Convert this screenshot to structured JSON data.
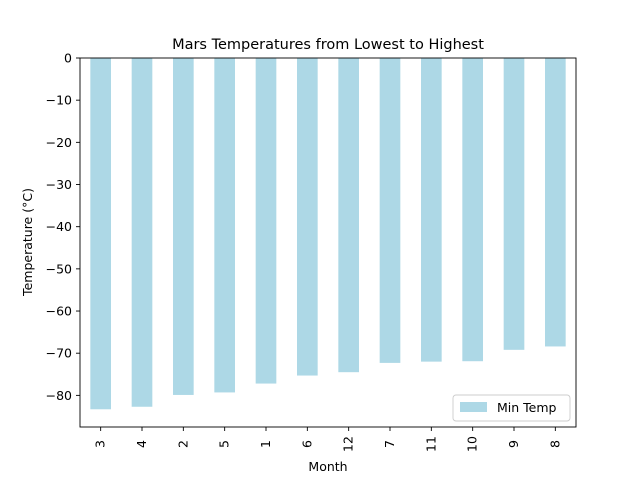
{
  "chart_data": {
    "type": "bar",
    "title": "Mars Temperatures from Lowest to Highest",
    "xlabel": "Month",
    "ylabel": "Temperature (°C)",
    "categories": [
      "3",
      "4",
      "2",
      "5",
      "1",
      "6",
      "12",
      "7",
      "11",
      "10",
      "9",
      "8"
    ],
    "series": [
      {
        "name": "Min Temp",
        "values": [
          -83.3,
          -82.7,
          -79.9,
          -79.3,
          -77.2,
          -75.3,
          -74.5,
          -72.3,
          -72.0,
          -71.9,
          -69.2,
          -68.4
        ],
        "color": "#add8e6"
      }
    ],
    "ylim": [
      -87.5,
      0
    ],
    "yticks": [
      0,
      -10,
      -20,
      -30,
      -40,
      -50,
      -60,
      -70,
      -80
    ],
    "ytick_labels": [
      "0",
      "−10",
      "−20",
      "−30",
      "−40",
      "−50",
      "−60",
      "−70",
      "−80"
    ],
    "grid": false,
    "legend_position": "lower-right"
  }
}
